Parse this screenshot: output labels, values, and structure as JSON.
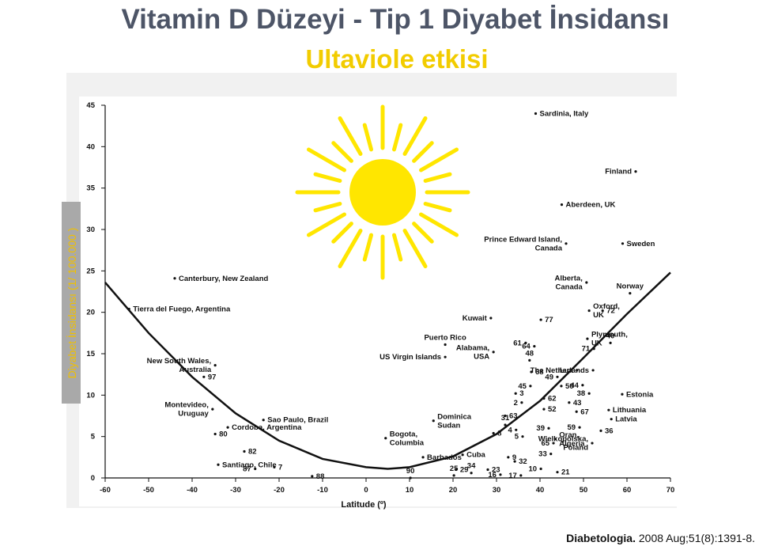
{
  "chart_data": {
    "type": "scatter",
    "title": "Vitamin D Düzeyi - Tip 1 Diyabet İnsidansı",
    "subtitle": "Ultaviole etkisi",
    "y_label": "Diyabet İnsidansı (1/ 100.000 )",
    "x_label": "Latitude (º)",
    "citation_journal": "Diabetologia.",
    "citation_rest": "2008 Aug;51(8):1391-8.",
    "color": "#111111",
    "x": [
      39,
      62,
      45,
      46,
      59,
      -44,
      -54.5,
      50.7,
      60.7,
      51.3,
      54.4,
      28.7,
      40.2,
      18.2,
      50.9,
      56.2,
      36.7,
      38.7,
      52.4,
      29.3,
      18.2,
      37.6,
      -37.3,
      -34.7,
      38,
      44,
      48.5,
      52.2,
      37.8,
      44.9,
      49.8,
      51.3,
      58.9,
      34.4,
      40.9,
      35.8,
      46.7,
      -35.3,
      40.9,
      48.4,
      55.8,
      56.4,
      32,
      -23.6,
      15.5,
      4.5,
      -31.8,
      32,
      42,
      49.1,
      54,
      -34.7,
      29.3,
      34.5,
      36,
      43.5,
      43.1,
      52,
      13.1,
      -28,
      42.5,
      22.2,
      32.7,
      -34,
      -25.5,
      -21.1,
      34.2,
      20.7,
      24.2,
      28,
      40.2,
      -12.4,
      10.2,
      20.2,
      30.9,
      35.6,
      44
    ],
    "values": [
      44,
      37,
      33,
      28.3,
      28.3,
      24.1,
      20.4,
      23.6,
      22.3,
      20.2,
      20.2,
      19.3,
      19.1,
      16.1,
      16.8,
      16.3,
      16.3,
      15.9,
      15.6,
      15.2,
      14.6,
      14.2,
      12.2,
      13.6,
      12.8,
      12.2,
      13,
      13,
      11.1,
      11.1,
      11.2,
      10.2,
      10.1,
      10.2,
      9.6,
      9.1,
      9.1,
      8.3,
      8.3,
      8,
      8.2,
      7.1,
      7.5,
      7,
      6.9,
      4.8,
      6.1,
      6.4,
      6,
      6.1,
      5.7,
      5.3,
      5.4,
      5.8,
      5,
      4.7,
      4.2,
      4.2,
      2.5,
      3.2,
      2.9,
      2.8,
      2.5,
      1.6,
      1.1,
      1.3,
      2,
      1,
      0.6,
      1,
      1.1,
      0.2,
      0,
      0.3,
      0.4,
      0.3,
      0.7
    ],
    "point_labels": [
      [
        "Sardinia, Italy"
      ],
      [
        "Finland"
      ],
      [
        "Aberdeen, UK"
      ],
      [
        "Prince Edward Island,",
        "Canada"
      ],
      [
        "Sweden"
      ],
      [
        "Canterbury, New Zealand"
      ],
      [
        "Tierra del Fuego, Argentina"
      ],
      [
        "Alberta,",
        "Canada"
      ],
      [
        "Norway"
      ],
      [
        "Oxford,",
        "UK"
      ],
      [
        "72"
      ],
      [
        "Kuwait"
      ],
      [
        "77"
      ],
      [
        "Puerto Rico"
      ],
      [
        "Plymouth,",
        "UK"
      ],
      [
        "40"
      ],
      [
        "61"
      ],
      [
        "64"
      ],
      [
        "71"
      ],
      [
        "Alabama,",
        "USA"
      ],
      [
        "US Virgin Islands"
      ],
      [
        "48"
      ],
      [
        "97"
      ],
      [
        "New South Wales,",
        "Australia"
      ],
      [
        "68"
      ],
      [
        "49"
      ],
      [
        "Lux"
      ],
      [
        "The Netherlands"
      ],
      [
        "45"
      ],
      [
        "50"
      ],
      [
        "44"
      ],
      [
        "38"
      ],
      [
        "Estonia"
      ],
      [
        "3"
      ],
      [
        "62"
      ],
      [
        "2"
      ],
      [
        "43"
      ],
      [
        "Montevideo,",
        "Uruguay"
      ],
      [
        "52"
      ],
      [
        "67"
      ],
      [
        "Lithuania"
      ],
      [
        "Latvia"
      ],
      [
        "63"
      ],
      [
        "Sao Paulo, Brazil"
      ],
      [
        "Dominica",
        "Sudan"
      ],
      [
        "Bogota,",
        "Columbia"
      ],
      [
        "Cordoba, Argentina"
      ],
      [
        "31"
      ],
      [
        "39"
      ],
      [
        "59"
      ],
      [
        "36"
      ],
      [
        "80"
      ],
      [
        "8"
      ],
      [
        "4"
      ],
      [
        "5"
      ],
      [
        "Oran,",
        "Algeria"
      ],
      [
        "65"
      ],
      [
        "Wielkopolska,",
        "Poland"
      ],
      [
        "Barbados"
      ],
      [
        "82"
      ],
      [
        "33"
      ],
      [
        "Cuba"
      ],
      [
        "9"
      ],
      [
        "Santiago, Chile"
      ],
      [
        "87"
      ],
      [
        "7"
      ],
      [
        "32"
      ],
      [
        "29"
      ],
      [
        "34"
      ],
      [
        "23"
      ],
      [
        "10"
      ],
      [
        "88"
      ],
      [
        "90"
      ],
      [
        "25"
      ],
      [
        "16"
      ],
      [
        "17"
      ],
      [
        "21"
      ]
    ],
    "fit_curve": {
      "x": [
        -60,
        -50,
        -40,
        -30,
        -20,
        -10,
        0,
        5,
        10,
        20,
        30,
        40,
        50,
        60,
        70
      ],
      "values": [
        23.6,
        17.5,
        12.2,
        7.8,
        4.5,
        2.3,
        1.3,
        1.1,
        1.3,
        2.6,
        5.3,
        9.3,
        14.5,
        19.8,
        24.8
      ]
    },
    "xlim": [
      -60,
      70
    ],
    "xticks": [
      -60,
      -50,
      -40,
      -30,
      -20,
      -10,
      0,
      10,
      20,
      30,
      40,
      50,
      60,
      70
    ],
    "ylim": [
      0,
      45
    ],
    "yticks": [
      0,
      5,
      10,
      15,
      20,
      25,
      30,
      35,
      40,
      45
    ]
  }
}
